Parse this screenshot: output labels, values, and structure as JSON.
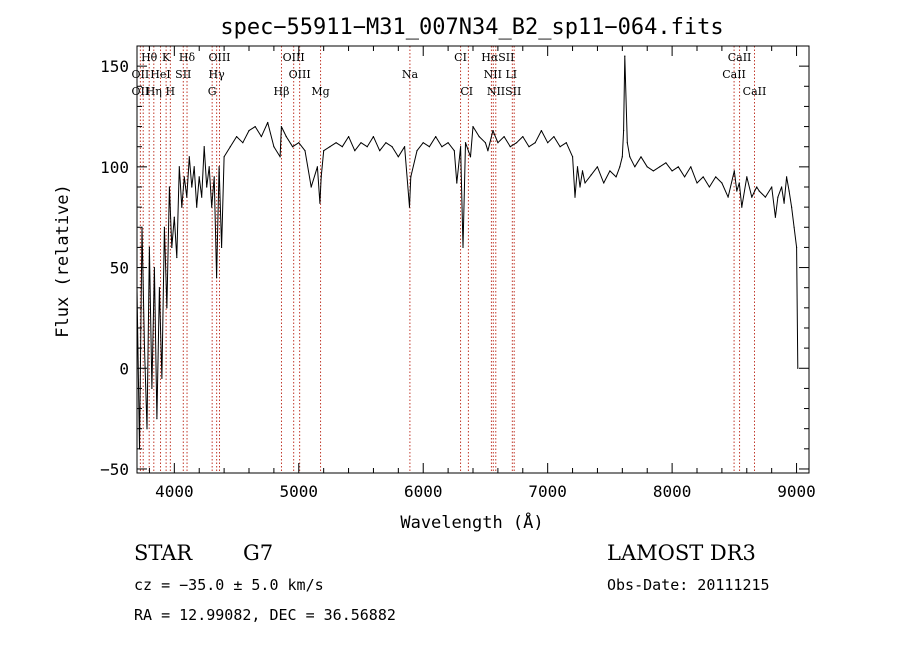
{
  "chart_data": {
    "type": "line",
    "title": "spec−55911−M31_007N34_B2_sp11−064.fits",
    "xlabel": "Wavelength (Å)",
    "ylabel": "Flux (relative)",
    "xlim": [
      3700,
      9100
    ],
    "ylim": [
      -52,
      160
    ],
    "x_ticks": [
      4000,
      5000,
      6000,
      7000,
      8000,
      9000
    ],
    "y_ticks": [
      -50,
      0,
      50,
      100,
      150
    ],
    "y_tick_labels": [
      "−50",
      "0",
      "50",
      "100",
      "150"
    ],
    "series": [
      {
        "name": "flux",
        "x": [
          3700,
          3720,
          3740,
          3760,
          3780,
          3800,
          3820,
          3840,
          3860,
          3880,
          3900,
          3920,
          3940,
          3960,
          3980,
          4000,
          4020,
          4040,
          4060,
          4080,
          4100,
          4120,
          4140,
          4160,
          4180,
          4200,
          4220,
          4240,
          4260,
          4280,
          4300,
          4320,
          4340,
          4360,
          4380,
          4400,
          4450,
          4500,
          4550,
          4600,
          4650,
          4700,
          4750,
          4800,
          4850,
          4860,
          4900,
          4950,
          5000,
          5050,
          5100,
          5150,
          5170,
          5180,
          5200,
          5250,
          5300,
          5350,
          5400,
          5450,
          5500,
          5550,
          5600,
          5650,
          5700,
          5750,
          5800,
          5850,
          5890,
          5900,
          5950,
          6000,
          6050,
          6100,
          6150,
          6200,
          6250,
          6270,
          6300,
          6320,
          6340,
          6380,
          6400,
          6450,
          6500,
          6520,
          6560,
          6600,
          6650,
          6700,
          6750,
          6800,
          6850,
          6900,
          6950,
          7000,
          7050,
          7100,
          7150,
          7200,
          7220,
          7240,
          7260,
          7280,
          7300,
          7350,
          7400,
          7450,
          7500,
          7550,
          7580,
          7600,
          7610,
          7620,
          7640,
          7660,
          7700,
          7750,
          7800,
          7850,
          7900,
          7950,
          8000,
          8050,
          8100,
          8150,
          8200,
          8250,
          8300,
          8350,
          8400,
          8450,
          8500,
          8520,
          8540,
          8560,
          8600,
          8640,
          8680,
          8700,
          8750,
          8800,
          8830,
          8850,
          8880,
          8900,
          8920,
          8940,
          8960,
          8980,
          9000,
          9010
        ],
        "y": [
          40,
          -40,
          70,
          10,
          -30,
          60,
          -10,
          50,
          -25,
          40,
          -5,
          70,
          30,
          90,
          60,
          75,
          55,
          100,
          80,
          95,
          85,
          105,
          90,
          100,
          80,
          95,
          85,
          110,
          90,
          100,
          80,
          95,
          45,
          100,
          60,
          105,
          110,
          115,
          112,
          118,
          120,
          115,
          122,
          110,
          105,
          120,
          115,
          110,
          112,
          108,
          90,
          100,
          82,
          95,
          108,
          110,
          112,
          110,
          115,
          108,
          112,
          110,
          115,
          108,
          112,
          110,
          105,
          110,
          80,
          95,
          108,
          112,
          110,
          115,
          110,
          112,
          108,
          92,
          110,
          60,
          112,
          105,
          120,
          115,
          112,
          108,
          118,
          112,
          115,
          110,
          112,
          115,
          110,
          112,
          118,
          112,
          115,
          110,
          112,
          105,
          85,
          100,
          90,
          98,
          92,
          96,
          100,
          92,
          98,
          95,
          100,
          105,
          118,
          155,
          112,
          105,
          100,
          105,
          100,
          98,
          100,
          102,
          98,
          100,
          95,
          100,
          92,
          95,
          90,
          95,
          92,
          85,
          98,
          88,
          92,
          80,
          95,
          85,
          90,
          88,
          85,
          90,
          75,
          85,
          90,
          82,
          95,
          88,
          80,
          70,
          60,
          0
        ],
        "color": "#000000"
      }
    ],
    "line_markers": [
      {
        "name": "H-theta",
        "label": "Hθ",
        "x": 3798,
        "row": 1
      },
      {
        "name": "K",
        "label": "K",
        "x": 3934,
        "row": 1
      },
      {
        "name": "H-delta",
        "label": "Hδ",
        "x": 4102,
        "row": 1
      },
      {
        "name": "OIII-upper",
        "label": "OIII",
        "x": 4363,
        "row": 1
      },
      {
        "name": "OIII-mid",
        "label": "OIII",
        "x": 4959,
        "row": 1
      },
      {
        "name": "CI-upper",
        "label": "CI",
        "x": 6300,
        "row": 1
      },
      {
        "name": "H-alpha-SII",
        "label": "HαSII",
        "x": 6600,
        "row": 1
      },
      {
        "name": "CaII-upper",
        "label": "CaII",
        "x": 8542,
        "row": 1
      },
      {
        "name": "OII-mid",
        "label": "OII",
        "x": 3727,
        "row": 2
      },
      {
        "name": "HeI",
        "label": "HeI",
        "x": 3889,
        "row": 2
      },
      {
        "name": "SII-mid",
        "label": "SII",
        "x": 4072,
        "row": 2
      },
      {
        "name": "H-gamma",
        "label": "Hγ",
        "x": 4340,
        "row": 2
      },
      {
        "name": "OIII-lower",
        "label": "OIII",
        "x": 5007,
        "row": 2
      },
      {
        "name": "Na",
        "label": "Na",
        "x": 5893,
        "row": 2
      },
      {
        "name": "NII-LI",
        "label": "NII LI",
        "x": 6620,
        "row": 2
      },
      {
        "name": "CaII-mid",
        "label": "CaII",
        "x": 8498,
        "row": 2
      },
      {
        "name": "OII-lower",
        "label": "OII",
        "x": 3727,
        "row": 3
      },
      {
        "name": "H-eta",
        "label": "Hη",
        "x": 3835,
        "row": 3
      },
      {
        "name": "H",
        "label": "H",
        "x": 3968,
        "row": 3
      },
      {
        "name": "G",
        "label": "G",
        "x": 4304,
        "row": 3
      },
      {
        "name": "H-beta",
        "label": "Hβ",
        "x": 4861,
        "row": 3
      },
      {
        "name": "Mg",
        "label": "Mg",
        "x": 5175,
        "row": 3
      },
      {
        "name": "CI-lower",
        "label": "CI",
        "x": 6350,
        "row": 3
      },
      {
        "name": "NIISII",
        "label": "NIISII",
        "x": 6650,
        "row": 3
      },
      {
        "name": "CaII-lower",
        "label": "CaII",
        "x": 8662,
        "row": 3
      }
    ],
    "marker_lines": [
      3727,
      3750,
      3798,
      3835,
      3889,
      3934,
      3968,
      4072,
      4102,
      4304,
      4340,
      4363,
      4861,
      4959,
      5007,
      5175,
      5893,
      6300,
      6363,
      6548,
      6563,
      6583,
      6716,
      6731,
      8498,
      8542,
      8662
    ]
  },
  "info": {
    "object_class": "STAR",
    "subclass": "G7",
    "survey": "LAMOST DR3",
    "redshift": "cz = −35.0 ± 5.0 km/s",
    "obs_date": "Obs-Date: 20111215",
    "coords": "RA =  12.99082, DEC =  36.56882"
  }
}
